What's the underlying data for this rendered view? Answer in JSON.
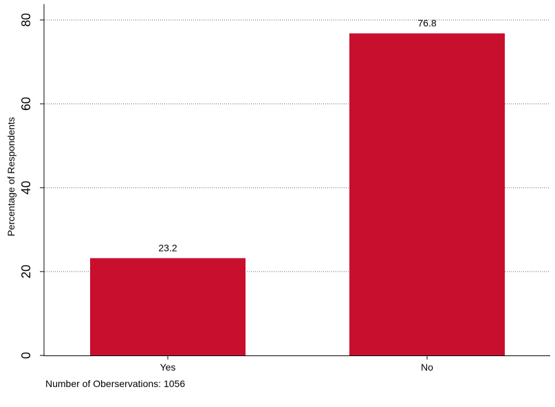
{
  "chart_data": {
    "type": "bar",
    "categories": [
      "Yes",
      "No"
    ],
    "values": [
      23.2,
      76.8
    ],
    "value_labels": [
      "23.2",
      "76.8"
    ],
    "title": "",
    "xlabel": "",
    "ylabel": "Percentage of Respondents",
    "ylim": [
      0,
      80
    ],
    "yticks": [
      0,
      20,
      40,
      60,
      80
    ],
    "ytick_labels": [
      "0",
      "20",
      "40",
      "60",
      "80"
    ],
    "grid": "horizontal dotted",
    "note": "Number of Oberservations: 1056",
    "bar_color": "#C8102E"
  }
}
